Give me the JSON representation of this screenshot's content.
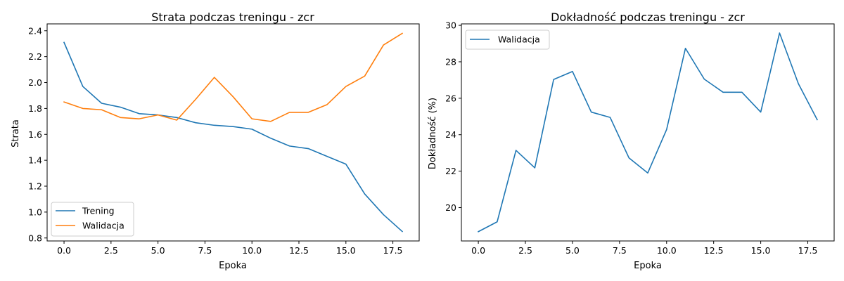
{
  "chart_data": [
    {
      "type": "line",
      "title": "Strata podczas treningu - zcr",
      "xlabel": "Epoka",
      "ylabel": "Strata",
      "x": [
        0,
        1,
        2,
        3,
        4,
        5,
        6,
        7,
        8,
        9,
        10,
        11,
        12,
        13,
        14,
        15,
        16,
        17,
        18
      ],
      "xlim": [
        -0.9,
        18.9
      ],
      "ylim": [
        0.777,
        2.453
      ],
      "xticks": [
        0.0,
        2.5,
        5.0,
        7.5,
        10.0,
        12.5,
        15.0,
        17.5
      ],
      "xtick_labels": [
        "0.0",
        "2.5",
        "5.0",
        "7.5",
        "10.0",
        "12.5",
        "15.0",
        "17.5"
      ],
      "yticks": [
        0.8,
        1.0,
        1.2,
        1.4,
        1.6,
        1.8,
        2.0,
        2.2,
        2.4
      ],
      "ytick_labels": [
        "0.8",
        "1.0",
        "1.2",
        "1.4",
        "1.6",
        "1.8",
        "2.0",
        "2.2",
        "2.4"
      ],
      "legend_position": "lower-left",
      "grid": false,
      "series": [
        {
          "name": "Trening",
          "color": "#1f77b4",
          "values": [
            2.31,
            1.97,
            1.84,
            1.81,
            1.76,
            1.75,
            1.73,
            1.69,
            1.67,
            1.66,
            1.64,
            1.57,
            1.51,
            1.49,
            1.43,
            1.37,
            1.14,
            0.98,
            0.85
          ]
        },
        {
          "name": "Walidacja",
          "color": "#ff7f0e",
          "values": [
            1.85,
            1.8,
            1.79,
            1.73,
            1.72,
            1.75,
            1.71,
            1.87,
            2.04,
            1.89,
            1.72,
            1.7,
            1.77,
            1.77,
            1.83,
            1.97,
            2.05,
            2.29,
            2.38
          ]
        }
      ]
    },
    {
      "type": "line",
      "title": "Dokładność podczas treningu - zcr",
      "xlabel": "Epoka",
      "ylabel": "Dokładność (%)",
      "x": [
        0,
        1,
        2,
        3,
        4,
        5,
        6,
        7,
        8,
        9,
        10,
        11,
        12,
        13,
        14,
        15,
        16,
        17,
        18
      ],
      "xlim": [
        -0.9,
        18.9
      ],
      "ylim": [
        18.17,
        30.08
      ],
      "xticks": [
        0.0,
        2.5,
        5.0,
        7.5,
        10.0,
        12.5,
        15.0,
        17.5
      ],
      "xtick_labels": [
        "0.0",
        "2.5",
        "5.0",
        "7.5",
        "10.0",
        "12.5",
        "15.0",
        "17.5"
      ],
      "yticks": [
        20,
        22,
        24,
        26,
        28,
        30
      ],
      "ytick_labels": [
        "20",
        "22",
        "24",
        "26",
        "28",
        "30"
      ],
      "legend_position": "top-left",
      "grid": false,
      "series": [
        {
          "name": "Walidacja",
          "color": "#1f77b4",
          "values": [
            18.68,
            19.22,
            23.14,
            22.18,
            27.03,
            27.47,
            25.24,
            24.95,
            22.73,
            21.9,
            24.28,
            28.74,
            27.05,
            26.33,
            26.33,
            25.24,
            29.58,
            26.8,
            24.82
          ]
        }
      ]
    }
  ]
}
